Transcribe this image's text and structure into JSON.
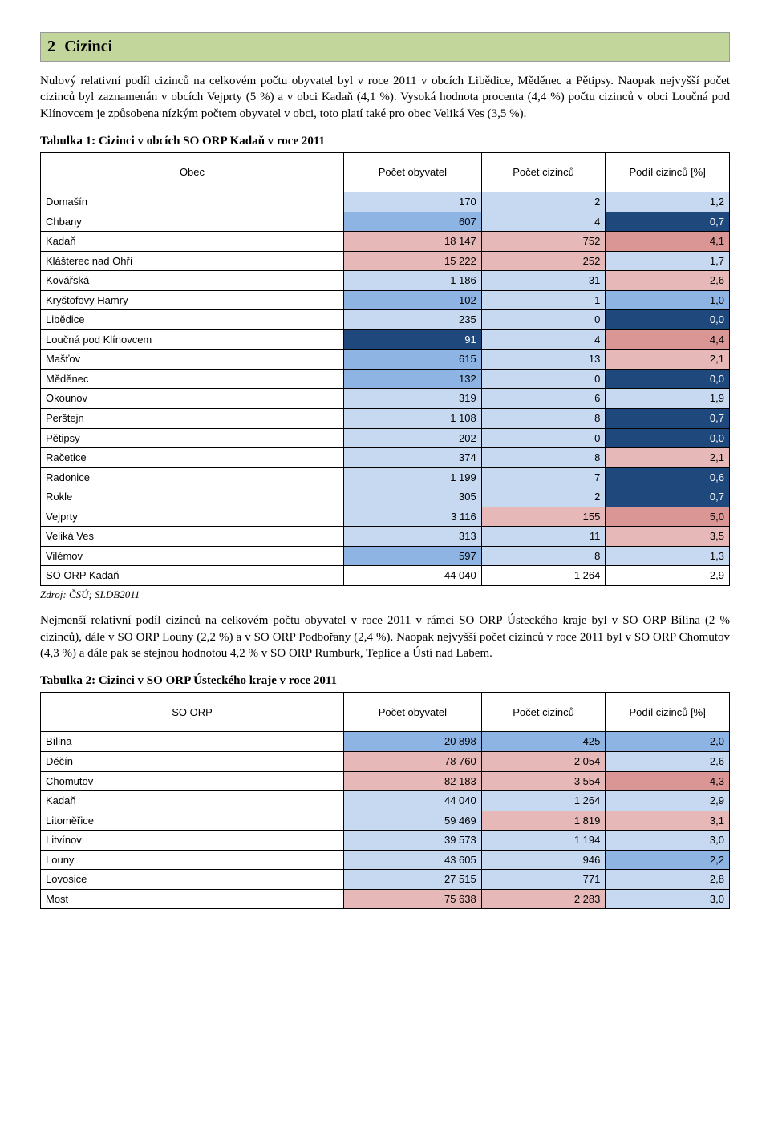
{
  "section": {
    "number": "2",
    "title": "Cizinci"
  },
  "paragraph1": "Nulový relativní podíl cizinců na celkovém počtu obyvatel byl v roce 2011 v obcích Libědice, Měděnec a Pětipsy. Naopak nejvyšší počet cizinců byl zaznamenán v obcích Vejprty (5 %) a v obci Kadaň (4,1 %). Vysoká hodnota procenta (4,4 %) počtu cizinců v obci Loučná pod Klínovcem je způsobena nízkým počtem obyvatel v obci, toto platí také pro obec Veliká Ves (3,5 %).",
  "table1": {
    "title": "Tabulka 1: Cizinci v obcích SO ORP Kadaň v roce 2011",
    "headers": [
      "Obec",
      "Počet obyvatel",
      "Počet cizinců",
      "Podíl cizinců [%]"
    ],
    "rows": [
      {
        "label": "Domašín",
        "v": [
          "170",
          "2",
          "1,2"
        ],
        "c": [
          "#c6d9f1",
          "#c6d9f1",
          "#c6d9f1"
        ]
      },
      {
        "label": "Chbany",
        "v": [
          "607",
          "4",
          "0,7"
        ],
        "c": [
          "#8eb4e3",
          "#c6d9f1",
          "#1f497d"
        ],
        "tc": [
          "",
          "",
          "#ffffff"
        ]
      },
      {
        "label": "Kadaň",
        "v": [
          "18 147",
          "752",
          "4,1"
        ],
        "c": [
          "#e6b9b8",
          "#e6b9b8",
          "#d99694"
        ]
      },
      {
        "label": "Klášterec nad Ohří",
        "v": [
          "15 222",
          "252",
          "1,7"
        ],
        "c": [
          "#e6b9b8",
          "#e6b9b8",
          "#c6d9f1"
        ]
      },
      {
        "label": "Kovářská",
        "v": [
          "1 186",
          "31",
          "2,6"
        ],
        "c": [
          "#c6d9f1",
          "#c6d9f1",
          "#e6b9b8"
        ]
      },
      {
        "label": "Kryštofovy Hamry",
        "v": [
          "102",
          "1",
          "1,0"
        ],
        "c": [
          "#8eb4e3",
          "#c6d9f1",
          "#8eb4e3"
        ]
      },
      {
        "label": "Libědice",
        "v": [
          "235",
          "0",
          "0,0"
        ],
        "c": [
          "#c6d9f1",
          "#c6d9f1",
          "#1f497d"
        ],
        "tc": [
          "",
          "",
          "#ffffff"
        ]
      },
      {
        "label": "Loučná pod Klínovcem",
        "v": [
          "91",
          "4",
          "4,4"
        ],
        "c": [
          "#1f497d",
          "#c6d9f1",
          "#d99694"
        ],
        "tc": [
          "#ffffff",
          "",
          ""
        ]
      },
      {
        "label": "Mašťov",
        "v": [
          "615",
          "13",
          "2,1"
        ],
        "c": [
          "#8eb4e3",
          "#c6d9f1",
          "#e6b9b8"
        ]
      },
      {
        "label": "Měděnec",
        "v": [
          "132",
          "0",
          "0,0"
        ],
        "c": [
          "#8eb4e3",
          "#c6d9f1",
          "#1f497d"
        ],
        "tc": [
          "",
          "",
          "#ffffff"
        ]
      },
      {
        "label": "Okounov",
        "v": [
          "319",
          "6",
          "1,9"
        ],
        "c": [
          "#c6d9f1",
          "#c6d9f1",
          "#c6d9f1"
        ]
      },
      {
        "label": "Perštejn",
        "v": [
          "1 108",
          "8",
          "0,7"
        ],
        "c": [
          "#c6d9f1",
          "#c6d9f1",
          "#1f497d"
        ],
        "tc": [
          "",
          "",
          "#ffffff"
        ]
      },
      {
        "label": "Pětipsy",
        "v": [
          "202",
          "0",
          "0,0"
        ],
        "c": [
          "#c6d9f1",
          "#c6d9f1",
          "#1f497d"
        ],
        "tc": [
          "",
          "",
          "#ffffff"
        ]
      },
      {
        "label": "Račetice",
        "v": [
          "374",
          "8",
          "2,1"
        ],
        "c": [
          "#c6d9f1",
          "#c6d9f1",
          "#e6b9b8"
        ]
      },
      {
        "label": "Radonice",
        "v": [
          "1 199",
          "7",
          "0,6"
        ],
        "c": [
          "#c6d9f1",
          "#c6d9f1",
          "#1f497d"
        ],
        "tc": [
          "",
          "",
          "#ffffff"
        ]
      },
      {
        "label": "Rokle",
        "v": [
          "305",
          "2",
          "0,7"
        ],
        "c": [
          "#c6d9f1",
          "#c6d9f1",
          "#1f497d"
        ],
        "tc": [
          "",
          "",
          "#ffffff"
        ]
      },
      {
        "label": "Vejprty",
        "v": [
          "3 116",
          "155",
          "5,0"
        ],
        "c": [
          "#c6d9f1",
          "#e6b9b8",
          "#d99694"
        ]
      },
      {
        "label": "Veliká Ves",
        "v": [
          "313",
          "11",
          "3,5"
        ],
        "c": [
          "#c6d9f1",
          "#c6d9f1",
          "#e6b9b8"
        ]
      },
      {
        "label": "Vilémov",
        "v": [
          "597",
          "8",
          "1,3"
        ],
        "c": [
          "#8eb4e3",
          "#c6d9f1",
          "#c6d9f1"
        ]
      },
      {
        "label": "SO ORP Kadaň",
        "v": [
          "44 040",
          "1 264",
          "2,9"
        ],
        "c": [
          "#ffffff",
          "#ffffff",
          "#ffffff"
        ]
      }
    ]
  },
  "source1": "Zdroj: ČSÚ; SLDB2011",
  "paragraph2": "Nejmenší relativní podíl cizinců na celkovém počtu obyvatel v roce 2011 v rámci SO ORP Ústeckého kraje byl v SO ORP Bílina (2 % cizinců), dále v SO ORP Louny (2,2 %) a v SO ORP Podbořany (2,4 %). Naopak nejvyšší počet cizinců v roce 2011 byl v SO ORP Chomutov (4,3 %) a dále pak se stejnou hodnotou 4,2 % v SO ORP Rumburk, Teplice a Ústí nad Labem.",
  "table2": {
    "title": "Tabulka 2: Cizinci v SO ORP Ústeckého kraje v roce 2011",
    "headers": [
      "SO ORP",
      "Počet obyvatel",
      "Počet cizinců",
      "Podíl cizinců [%]"
    ],
    "rows": [
      {
        "label": "Bílina",
        "v": [
          "20 898",
          "425",
          "2,0"
        ],
        "c": [
          "#8eb4e3",
          "#8eb4e3",
          "#8eb4e3"
        ]
      },
      {
        "label": "Děčín",
        "v": [
          "78 760",
          "2 054",
          "2,6"
        ],
        "c": [
          "#e6b9b8",
          "#e6b9b8",
          "#c6d9f1"
        ]
      },
      {
        "label": "Chomutov",
        "v": [
          "82 183",
          "3 554",
          "4,3"
        ],
        "c": [
          "#e6b9b8",
          "#e6b9b8",
          "#d99694"
        ]
      },
      {
        "label": "Kadaň",
        "v": [
          "44 040",
          "1 264",
          "2,9"
        ],
        "c": [
          "#c6d9f1",
          "#c6d9f1",
          "#c6d9f1"
        ]
      },
      {
        "label": "Litoměřice",
        "v": [
          "59 469",
          "1 819",
          "3,1"
        ],
        "c": [
          "#c6d9f1",
          "#e6b9b8",
          "#e6b9b8"
        ]
      },
      {
        "label": "Litvínov",
        "v": [
          "39 573",
          "1 194",
          "3,0"
        ],
        "c": [
          "#c6d9f1",
          "#c6d9f1",
          "#c6d9f1"
        ]
      },
      {
        "label": "Louny",
        "v": [
          "43 605",
          "946",
          "2,2"
        ],
        "c": [
          "#c6d9f1",
          "#c6d9f1",
          "#8eb4e3"
        ]
      },
      {
        "label": "Lovosice",
        "v": [
          "27 515",
          "771",
          "2,8"
        ],
        "c": [
          "#c6d9f1",
          "#c6d9f1",
          "#c6d9f1"
        ]
      },
      {
        "label": "Most",
        "v": [
          "75 638",
          "2 283",
          "3,0"
        ],
        "c": [
          "#e6b9b8",
          "#e6b9b8",
          "#c6d9f1"
        ]
      }
    ]
  }
}
